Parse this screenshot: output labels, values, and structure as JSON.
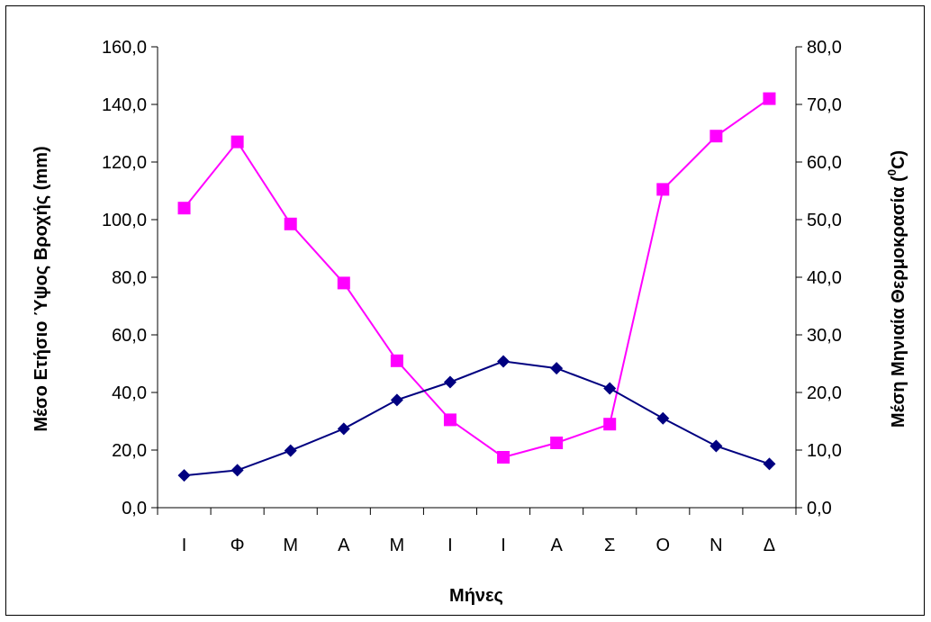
{
  "chart_data": {
    "type": "line",
    "categories": [
      "Ι",
      "Φ",
      "Μ",
      "Α",
      "Μ",
      "Ι",
      "Ι",
      "Α",
      "Σ",
      "Ο",
      "Ν",
      "Δ"
    ],
    "xlabel": "Μήνες",
    "ylabel_left": "Μέσο Ετήσιο Ύψος Βροχής (mm)",
    "ylabel_right_prefix": "Μέση Μηνιαία Θερμοκρασία (",
    "ylabel_right_sup": "0",
    "ylabel_right_suffix": "C)",
    "ylim_left": [
      0,
      160
    ],
    "ylim_right": [
      0,
      80
    ],
    "yticks_left": [
      "0,0",
      "20,0",
      "40,0",
      "60,0",
      "80,0",
      "100,0",
      "120,0",
      "140,0",
      "160,0"
    ],
    "yticks_right": [
      "0,0",
      "10,0",
      "20,0",
      "30,0",
      "40,0",
      "50,0",
      "60,0",
      "70,0",
      "80,0"
    ],
    "grid": false,
    "legend": "none",
    "series": [
      {
        "axis": "left",
        "color": "#FF00FF",
        "marker": "square",
        "values": [
          104.0,
          127.0,
          98.5,
          78.0,
          51.0,
          30.5,
          17.5,
          22.5,
          29.0,
          110.5,
          129.0,
          142.0
        ]
      },
      {
        "axis": "right",
        "color": "#000080",
        "marker": "diamond",
        "values": [
          5.6,
          6.5,
          9.9,
          13.7,
          18.7,
          21.8,
          25.4,
          24.2,
          20.7,
          15.5,
          10.7,
          7.6
        ]
      }
    ]
  }
}
